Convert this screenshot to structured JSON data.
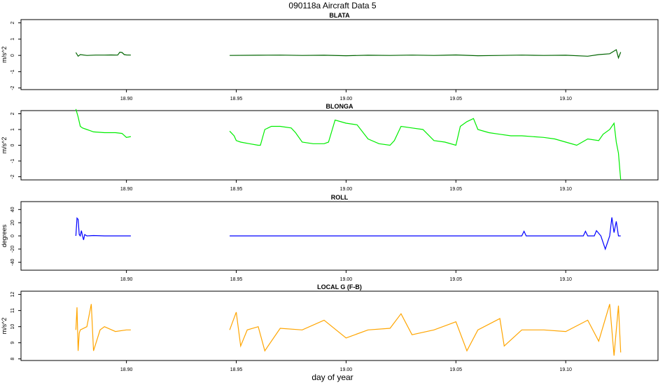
{
  "figure": {
    "title": "090118a   Aircraft Data 5",
    "xlabel": "day of year"
  },
  "chart_data": [
    {
      "type": "line",
      "title": "BLATA",
      "ylabel": "m/s^2",
      "color": "#006400",
      "xlim": [
        18.852,
        19.142
      ],
      "ylim": [
        -2.1,
        2.2
      ],
      "xticks": [
        "18.90",
        "18.95",
        "19.00",
        "19.05",
        "19.10"
      ],
      "yticks": [
        "-2",
        "-1",
        "0",
        "1",
        "2"
      ],
      "series": [
        {
          "x": [
            18.877,
            18.878,
            18.879,
            18.882,
            18.886,
            18.89,
            18.893,
            18.896,
            18.897,
            18.898,
            18.899,
            18.9,
            18.902
          ],
          "y": [
            0.18,
            -0.05,
            0.05,
            0.0,
            0.02,
            0.02,
            0.03,
            0.02,
            0.2,
            0.18,
            0.05,
            0.03,
            0.02
          ]
        },
        {
          "x": [
            18.947,
            18.96,
            18.97,
            18.98,
            18.99,
            19.0,
            19.01,
            19.02,
            19.03,
            19.04,
            19.05,
            19.06,
            19.07,
            19.08,
            19.09,
            19.1,
            19.11,
            19.115,
            19.12,
            19.123,
            19.124,
            19.125
          ],
          "y": [
            0.0,
            0.01,
            0.02,
            0.0,
            0.01,
            -0.02,
            0.01,
            0.0,
            0.02,
            0.0,
            0.03,
            -0.02,
            0.0,
            0.02,
            0.0,
            0.01,
            -0.05,
            0.05,
            0.1,
            0.35,
            -0.15,
            0.2
          ]
        }
      ]
    },
    {
      "type": "line",
      "title": "BLONGA",
      "ylabel": "m/s^2",
      "color": "#00ee00",
      "xlim": [
        18.852,
        19.142
      ],
      "ylim": [
        -2.2,
        2.2
      ],
      "xticks": [
        "18.90",
        "18.95",
        "19.00",
        "19.05",
        "19.10"
      ],
      "yticks": [
        "-2",
        "-1",
        "0",
        "1",
        "2"
      ],
      "series": [
        {
          "x": [
            18.877,
            18.878,
            18.879,
            18.88,
            18.882,
            18.885,
            18.89,
            18.895,
            18.898,
            18.9,
            18.902
          ],
          "y": [
            2.3,
            1.8,
            1.2,
            1.1,
            1.0,
            0.85,
            0.8,
            0.8,
            0.75,
            0.5,
            0.55
          ]
        },
        {
          "x": [
            18.947,
            18.949,
            18.95,
            18.952,
            18.956,
            18.96,
            18.961,
            18.963,
            18.966,
            18.97,
            18.975,
            18.977,
            18.98,
            18.985,
            18.99,
            18.992,
            18.995,
            19.0,
            19.005,
            19.01,
            19.015,
            19.02,
            19.022,
            19.025,
            19.03,
            19.035,
            19.04,
            19.045,
            19.05,
            19.052,
            19.055,
            19.058,
            19.06,
            19.065,
            19.07,
            19.075,
            19.08,
            19.09,
            19.095,
            19.1,
            19.105,
            19.11,
            19.115,
            19.117,
            19.12,
            19.122,
            19.123,
            19.124,
            19.125
          ],
          "y": [
            0.9,
            0.6,
            0.3,
            0.2,
            0.1,
            0.0,
            0.0,
            1.0,
            1.2,
            1.2,
            1.1,
            0.8,
            0.2,
            0.1,
            0.1,
            0.2,
            1.6,
            1.4,
            1.3,
            0.4,
            0.1,
            0.0,
            0.3,
            1.2,
            1.1,
            1.0,
            0.3,
            0.2,
            0.0,
            1.2,
            1.5,
            1.7,
            1.0,
            0.8,
            0.7,
            0.6,
            0.6,
            0.5,
            0.4,
            0.2,
            0.0,
            0.4,
            0.3,
            0.7,
            1.0,
            1.4,
            0.2,
            -0.5,
            -2.2
          ]
        }
      ]
    },
    {
      "type": "line",
      "title": "ROLL",
      "ylabel": "degrees",
      "color": "#0000ff",
      "xlim": [
        18.852,
        19.142
      ],
      "ylim": [
        -52,
        52
      ],
      "xticks": [
        "18.90",
        "18.95",
        "19.00",
        "19.05",
        "19.10"
      ],
      "yticks": [
        "-40",
        "-20",
        "0",
        "20",
        "40"
      ],
      "series": [
        {
          "x": [
            18.877,
            18.8775,
            18.878,
            18.8785,
            18.879,
            18.8795,
            18.88,
            18.8805,
            18.881,
            18.882,
            18.885,
            18.89,
            18.895,
            18.9,
            18.902
          ],
          "y": [
            0,
            27,
            25,
            2,
            0,
            8,
            0,
            -6,
            2,
            0,
            0.5,
            0,
            0,
            0,
            0
          ]
        },
        {
          "x": [
            18.947,
            18.96,
            18.98,
            19.0,
            19.02,
            19.04,
            19.06,
            19.075,
            19.08,
            19.081,
            19.082,
            19.09,
            19.1,
            19.108,
            19.109,
            19.11,
            19.113,
            19.114,
            19.116,
            19.118,
            19.12,
            19.121,
            19.122,
            19.123,
            19.124,
            19.125
          ],
          "y": [
            0,
            0,
            0,
            0,
            0,
            0,
            0,
            0,
            0,
            7,
            0,
            0,
            0,
            0,
            7,
            0,
            0,
            8,
            0,
            -20,
            0,
            28,
            5,
            22,
            0,
            0
          ]
        }
      ]
    },
    {
      "type": "line",
      "title": "LOCAL G (F-B)",
      "ylabel": "m/s^2",
      "color": "#ffa500",
      "xlim": [
        18.852,
        19.142
      ],
      "ylim": [
        7.9,
        12.2
      ],
      "xticks": [
        "18.90",
        "18.95",
        "19.00",
        "19.05",
        "19.10"
      ],
      "yticks": [
        "8",
        "9",
        "10",
        "11",
        "12"
      ],
      "series": [
        {
          "x": [
            18.877,
            18.8775,
            18.878,
            18.8785,
            18.879,
            18.882,
            18.884,
            18.885,
            18.888,
            18.89,
            18.895,
            18.9,
            18.902
          ],
          "y": [
            9.8,
            11.2,
            8.5,
            9.6,
            9.8,
            10.0,
            11.4,
            8.5,
            9.8,
            10.0,
            9.7,
            9.8,
            9.8
          ]
        },
        {
          "x": [
            18.947,
            18.95,
            18.952,
            18.955,
            18.96,
            18.963,
            18.97,
            18.98,
            18.99,
            19.0,
            19.01,
            19.02,
            19.025,
            19.03,
            19.04,
            19.05,
            19.055,
            19.06,
            19.07,
            19.072,
            19.08,
            19.09,
            19.1,
            19.11,
            19.115,
            19.12,
            19.122,
            19.124,
            19.125
          ],
          "y": [
            9.8,
            10.9,
            8.8,
            9.8,
            10.0,
            8.5,
            9.9,
            9.8,
            10.4,
            9.3,
            9.8,
            9.9,
            10.8,
            9.5,
            9.8,
            10.3,
            8.5,
            9.8,
            10.5,
            8.8,
            9.8,
            9.8,
            9.7,
            10.4,
            9.1,
            11.4,
            8.2,
            11.3,
            8.4
          ]
        }
      ]
    }
  ]
}
